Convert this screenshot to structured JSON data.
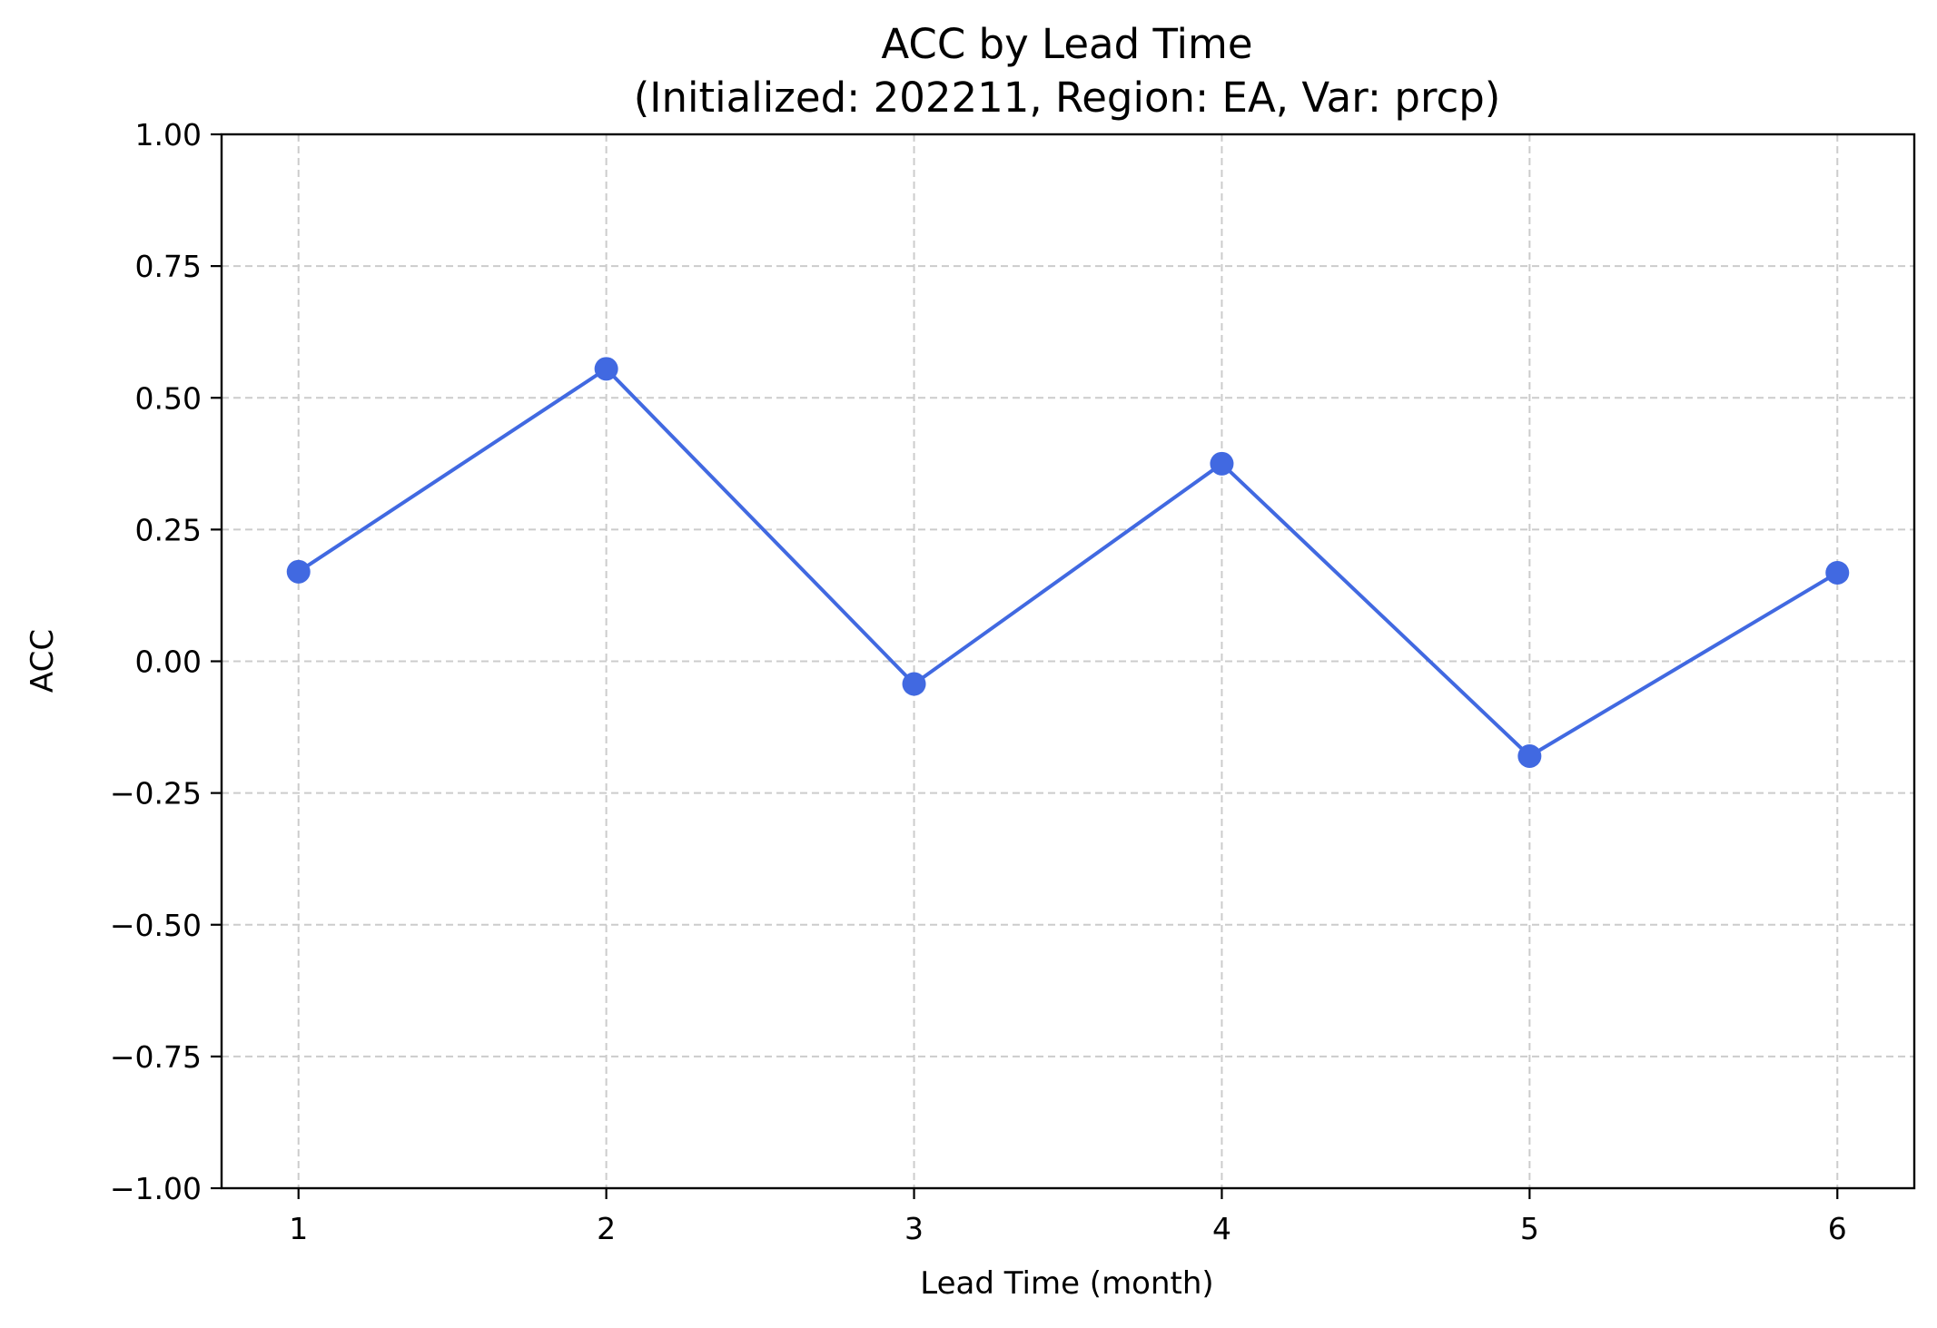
{
  "chart_data": {
    "type": "line",
    "title": "ACC by Lead Time",
    "subtitle": "(Initialized: 202211, Region: EA, Var: prcp)",
    "xlabel": "Lead Time (month)",
    "ylabel": "ACC",
    "x": [
      1,
      2,
      3,
      4,
      5,
      6
    ],
    "x_tick_labels": [
      "1",
      "2",
      "3",
      "4",
      "5",
      "6"
    ],
    "xlim": [
      0.75,
      6.25
    ],
    "ylim": [
      -1.0,
      1.0
    ],
    "y_ticks": [
      -1.0,
      -0.75,
      -0.5,
      -0.25,
      0.0,
      0.25,
      0.5,
      0.75,
      1.0
    ],
    "y_tick_labels": [
      "−1.00",
      "−0.75",
      "−0.50",
      "−0.25",
      "0.00",
      "0.25",
      "0.50",
      "0.75",
      "1.00"
    ],
    "series": [
      {
        "values": [
          0.17,
          0.555,
          -0.043,
          0.375,
          -0.18,
          0.168
        ],
        "color": "#4169e1",
        "marker": "circle"
      }
    ],
    "grid": true,
    "grid_style": "dashed",
    "grid_color": "#cccccc",
    "legend": "none"
  }
}
